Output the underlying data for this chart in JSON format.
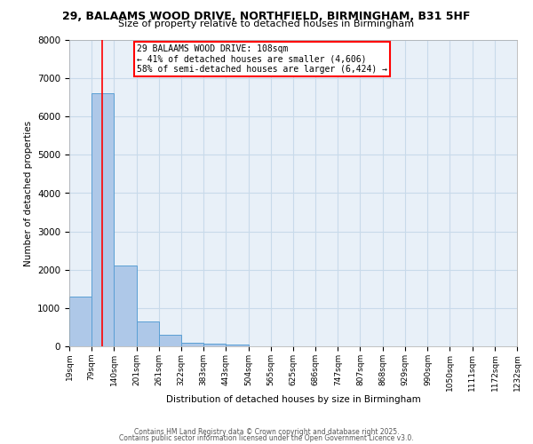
{
  "title_line1": "29, BALAAMS WOOD DRIVE, NORTHFIELD, BIRMINGHAM, B31 5HF",
  "title_line2": "Size of property relative to detached houses in Birmingham",
  "xlabel": "Distribution of detached houses by size in Birmingham",
  "ylabel": "Number of detached properties",
  "bar_values": [
    1300,
    6600,
    2100,
    650,
    300,
    100,
    80,
    50,
    0,
    0,
    0,
    0,
    0,
    0,
    0,
    0,
    0,
    0,
    0,
    0
  ],
  "bin_edges": [
    19,
    79,
    140,
    201,
    261,
    322,
    383,
    443,
    504,
    565,
    625,
    686,
    747,
    807,
    868,
    929,
    990,
    1050,
    1111,
    1172,
    1232
  ],
  "bin_labels": [
    "19sqm",
    "79sqm",
    "140sqm",
    "201sqm",
    "261sqm",
    "322sqm",
    "383sqm",
    "443sqm",
    "504sqm",
    "565sqm",
    "625sqm",
    "686sqm",
    "747sqm",
    "807sqm",
    "868sqm",
    "929sqm",
    "990sqm",
    "1050sqm",
    "1111sqm",
    "1172sqm",
    "1232sqm"
  ],
  "vline_x": 108,
  "annotation_line1": "29 BALAAMS WOOD DRIVE: 108sqm",
  "annotation_line2": "← 41% of detached houses are smaller (4,606)",
  "annotation_line3": "58% of semi-detached houses are larger (6,424) →",
  "bar_color": "#aec8e8",
  "bar_edge_color": "#5a9fd4",
  "vline_color": "red",
  "grid_color": "#c8daea",
  "background_color": "#e8f0f8",
  "ylim": [
    0,
    8000
  ],
  "yticks": [
    0,
    1000,
    2000,
    3000,
    4000,
    5000,
    6000,
    7000,
    8000
  ],
  "footer_line1": "Contains HM Land Registry data © Crown copyright and database right 2025.",
  "footer_line2": "Contains public sector information licensed under the Open Government Licence v3.0."
}
